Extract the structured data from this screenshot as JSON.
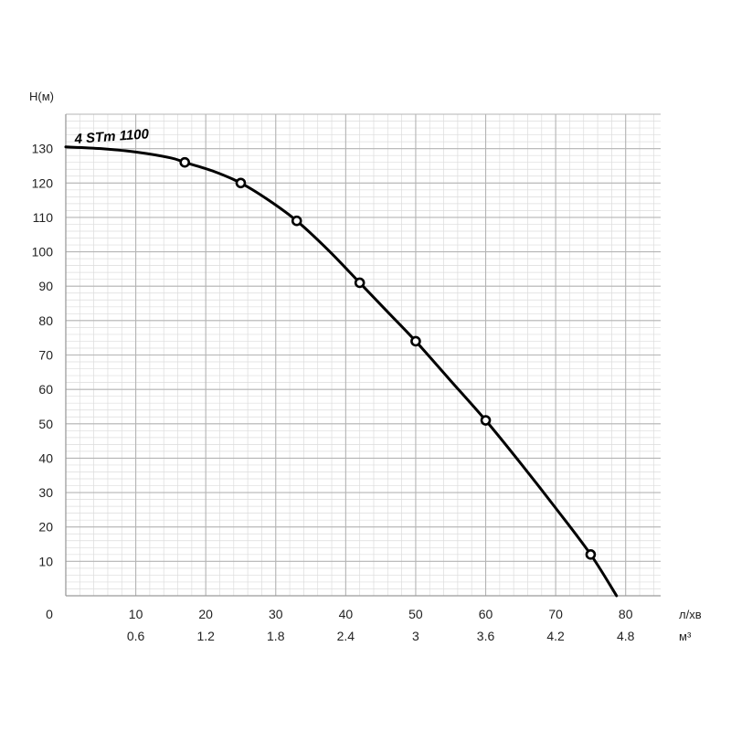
{
  "chart_data": {
    "type": "line",
    "x_axis": {
      "unit_label": "л/хв",
      "range": [
        0,
        85
      ],
      "ticks": [
        10,
        20,
        30,
        40,
        50,
        60,
        70,
        80
      ],
      "tick_labels": [
        "10",
        "20",
        "30",
        "40",
        "50",
        "60",
        "70",
        "80"
      ],
      "origin_label": "0"
    },
    "x2_axis": {
      "unit_label": "м³",
      "ticks": [
        10,
        20,
        30,
        40,
        50,
        60,
        70,
        80
      ],
      "tick_labels": [
        "0.6",
        "1.2",
        "1.8",
        "2.4",
        "3",
        "3.6",
        "4.2",
        "4.8"
      ]
    },
    "y_axis": {
      "label": "H(м)",
      "range": [
        0,
        140
      ],
      "ticks": [
        10,
        20,
        30,
        40,
        50,
        60,
        70,
        80,
        90,
        100,
        110,
        120,
        130
      ],
      "tick_labels": [
        "10",
        "20",
        "30",
        "40",
        "50",
        "60",
        "70",
        "80",
        "90",
        "100",
        "110",
        "120",
        "130"
      ]
    },
    "grid": true,
    "series": [
      {
        "name": "4 STm 1100",
        "color": "#000000",
        "curve": [
          [
            0,
            130.5
          ],
          [
            5,
            130
          ],
          [
            10,
            129
          ],
          [
            15,
            127.3
          ],
          [
            17,
            126
          ],
          [
            21,
            123.5
          ],
          [
            25,
            120
          ],
          [
            29,
            115
          ],
          [
            33,
            109
          ],
          [
            37.5,
            100.5
          ],
          [
            42,
            91
          ],
          [
            46,
            82.5
          ],
          [
            50,
            74
          ],
          [
            55,
            62.5
          ],
          [
            60,
            51
          ],
          [
            65,
            38.5
          ],
          [
            70,
            25.5
          ],
          [
            75,
            12
          ],
          [
            78.7,
            0
          ]
        ],
        "markers": [
          [
            17,
            126
          ],
          [
            25,
            120
          ],
          [
            33,
            109
          ],
          [
            42,
            91
          ],
          [
            50,
            74
          ],
          [
            60,
            51
          ],
          [
            75,
            12
          ]
        ]
      }
    ]
  }
}
